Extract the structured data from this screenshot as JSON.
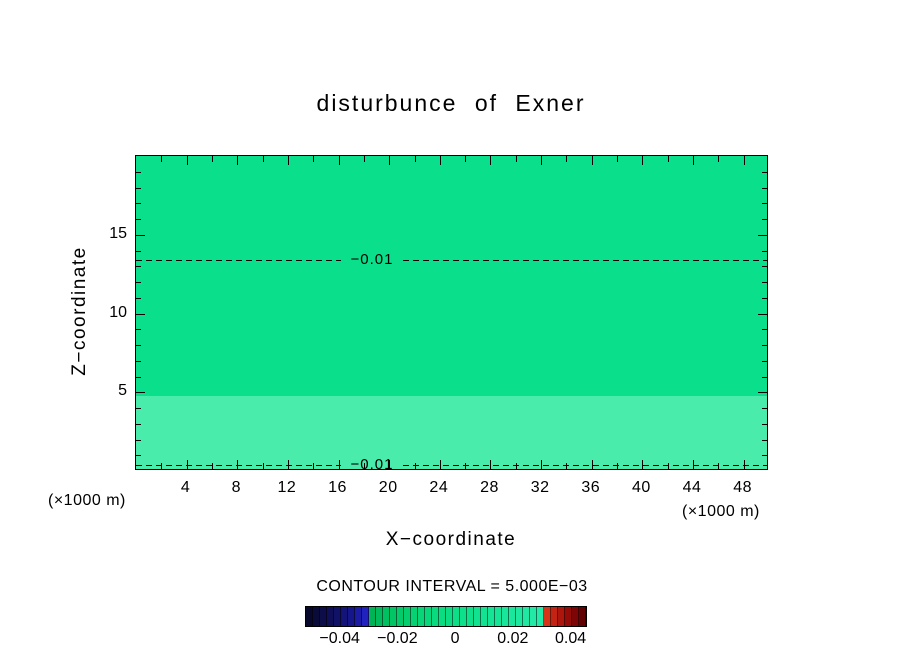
{
  "chart_data": {
    "type": "heatmap",
    "title": "disturbunce of Exner",
    "xlabel": "X−coordinate",
    "ylabel": "Z−coordinate",
    "x_unit": "(×1000 m)",
    "y_unit": "(×1000 m)",
    "xlim": [
      0,
      50
    ],
    "ylim": [
      0,
      20
    ],
    "x_ticks": [
      4,
      8,
      12,
      16,
      20,
      24,
      28,
      32,
      36,
      40,
      44,
      48
    ],
    "y_ticks": [
      5,
      10,
      15
    ],
    "x_minor_step": 2,
    "y_minor_step": 1,
    "contour_interval_text": "CONTOUR INTERVAL = 5.000E−03",
    "contours": [
      {
        "value": -0.01,
        "label": "−0.01",
        "z": 13.4
      },
      {
        "value": -0.01,
        "label": "−0.01",
        "z": 0.35
      }
    ],
    "fill": {
      "main_color": "#0adf8b",
      "band": {
        "z_from": 0.0,
        "z_to": 4.75,
        "color": "#49ecab"
      }
    },
    "colorbar": {
      "range": [
        -0.052,
        0.045
      ],
      "ticks": [
        {
          "value": -0.04,
          "label": "−0.04"
        },
        {
          "value": -0.02,
          "label": "−0.02"
        },
        {
          "value": 0,
          "label": "0"
        },
        {
          "value": 0.02,
          "label": "0.02"
        },
        {
          "value": 0.04,
          "label": "0.04"
        }
      ],
      "segments": [
        "#08082c",
        "#0b0b3a",
        "#0d0d49",
        "#0f0f58",
        "#111168",
        "#131378",
        "#16168c",
        "#1b1ba6",
        "#2121c0",
        "#00b455",
        "#00ba5c",
        "#00c062",
        "#02c566",
        "#04ca6b",
        "#05ce6f",
        "#06d274",
        "#07d578",
        "#08d87b",
        "#09da7e",
        "#0adc82",
        "#0bdd85",
        "#0cdf88",
        "#0de08a",
        "#0ee18c",
        "#10e28f",
        "#12e392",
        "#14e495",
        "#16e598",
        "#18e69b",
        "#1ae79d",
        "#1ce8a0",
        "#1fe9a3",
        "#22eaa6",
        "#25ebaa",
        "#d63318",
        "#c22312",
        "#ad150d",
        "#960b08",
        "#7d0505",
        "#620202"
      ]
    }
  }
}
